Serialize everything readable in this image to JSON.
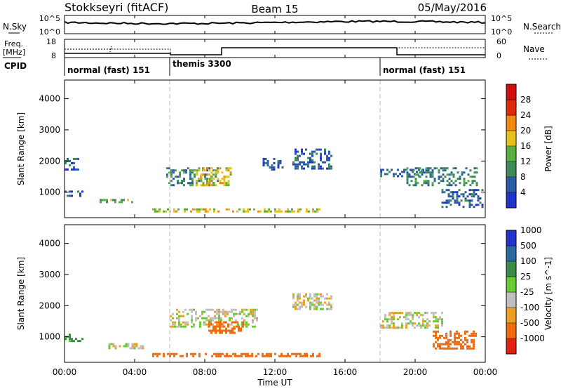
{
  "header": {
    "station": "Stokkseyri (fitACF)",
    "beam": "Beam 15",
    "date": "05/May/2016"
  },
  "noise_panel": {
    "left_label": "N.Sky",
    "right_label": "N.Search",
    "ticks_left": [
      "10^5",
      "10^0"
    ],
    "ticks_right": [
      "10^5",
      "10^0"
    ]
  },
  "freq_panel": {
    "left_label_1": "Freq.",
    "left_label_2": "[MHz]",
    "right_label": "Nave",
    "ticks_left": [
      "18",
      "8"
    ],
    "ticks_right": [
      "60",
      "0"
    ]
  },
  "cpid": {
    "label": "CPID",
    "segments": [
      {
        "name": "normal (fast) 151",
        "start_hour": 0,
        "end_hour": 6
      },
      {
        "name": "themis 3300",
        "start_hour": 6,
        "end_hour": 18
      },
      {
        "name": "normal (fast) 151",
        "start_hour": 18,
        "end_hour": 24
      }
    ]
  },
  "x_axis": {
    "label": "Time UT",
    "ticks": [
      "00:00",
      "04:00",
      "08:00",
      "12:00",
      "16:00",
      "20:00",
      "00:00"
    ]
  },
  "y_axis": {
    "label": "Slant Range [km]",
    "ticks": [
      "1000",
      "2000",
      "3000",
      "4000"
    ]
  },
  "power_scale": {
    "label": "Power [dB]",
    "ticks": [
      "4",
      "8",
      "12",
      "16",
      "20",
      "24",
      "28"
    ],
    "colors": [
      "#2233cc",
      "#2a5aa8",
      "#3e8a5a",
      "#55b040",
      "#e6c21a",
      "#f08a10",
      "#e02a10",
      "#d01010"
    ]
  },
  "velocity_scale": {
    "label": "Velocity [m s^-1]",
    "ticks": [
      "1000",
      "500",
      "100",
      "25",
      "-25",
      "-100",
      "-500",
      "-1000"
    ],
    "colors": [
      "#2233cc",
      "#2a6aa0",
      "#3a8c48",
      "#66cc33",
      "#c0c0c0",
      "#f0a020",
      "#f06a10",
      "#e02010"
    ]
  },
  "chart_data": {
    "type": "heatmap",
    "title": "Stokkseyri (fitACF)  Beam 15  05/May/2016",
    "xlabel": "Time UT",
    "ylabel": "Slant Range [km]",
    "xlim": [
      0,
      24
    ],
    "ylim": [
      180,
      4600
    ],
    "note_units": "x in hours UT, y in km",
    "power_regions": [
      {
        "x": [
          0.0,
          0.8
        ],
        "y": [
          1750,
          2100
        ],
        "level": 8
      },
      {
        "x": [
          0.0,
          1.0
        ],
        "y": [
          850,
          1050
        ],
        "level": 8
      },
      {
        "x": [
          2.0,
          4.5
        ],
        "y": [
          650,
          780
        ],
        "level": 16
      },
      {
        "x": [
          5.8,
          8.8
        ],
        "y": [
          1250,
          1800
        ],
        "level": 12
      },
      {
        "x": [
          7.5,
          9.5
        ],
        "y": [
          1200,
          1800
        ],
        "level": 20
      },
      {
        "x": [
          11.3,
          12.5
        ],
        "y": [
          1700,
          2100
        ],
        "level": 8
      },
      {
        "x": [
          13.0,
          15.2
        ],
        "y": [
          1750,
          2400
        ],
        "level": 8
      },
      {
        "x": [
          18.0,
          20.5
        ],
        "y": [
          1500,
          1750
        ],
        "level": 8
      },
      {
        "x": [
          19.5,
          23.5
        ],
        "y": [
          1200,
          1800
        ],
        "level": 12
      },
      {
        "x": [
          21.5,
          23.8
        ],
        "y": [
          500,
          1100
        ],
        "level": 8
      },
      {
        "x": [
          5.0,
          14.5
        ],
        "y": [
          350,
          480
        ],
        "level": 20
      }
    ],
    "velocity_regions": [
      {
        "x": [
          6.0,
          11.0
        ],
        "y": [
          1300,
          1900
        ],
        "vel": 0
      },
      {
        "x": [
          8.2,
          10.2
        ],
        "y": [
          1150,
          1500
        ],
        "vel": -300
      },
      {
        "x": [
          13.0,
          15.2
        ],
        "y": [
          1900,
          2400
        ],
        "vel": 0
      },
      {
        "x": [
          18.0,
          21.5
        ],
        "y": [
          1300,
          1800
        ],
        "vel": 0
      },
      {
        "x": [
          21.0,
          23.5
        ],
        "y": [
          600,
          1200
        ],
        "vel": -300
      },
      {
        "x": [
          2.5,
          4.5
        ],
        "y": [
          650,
          800
        ],
        "vel": 0
      },
      {
        "x": [
          5.0,
          14.5
        ],
        "y": [
          380,
          480
        ],
        "vel": -200
      },
      {
        "x": [
          0.0,
          1.0
        ],
        "y": [
          850,
          1100
        ],
        "vel": 100
      }
    ]
  }
}
